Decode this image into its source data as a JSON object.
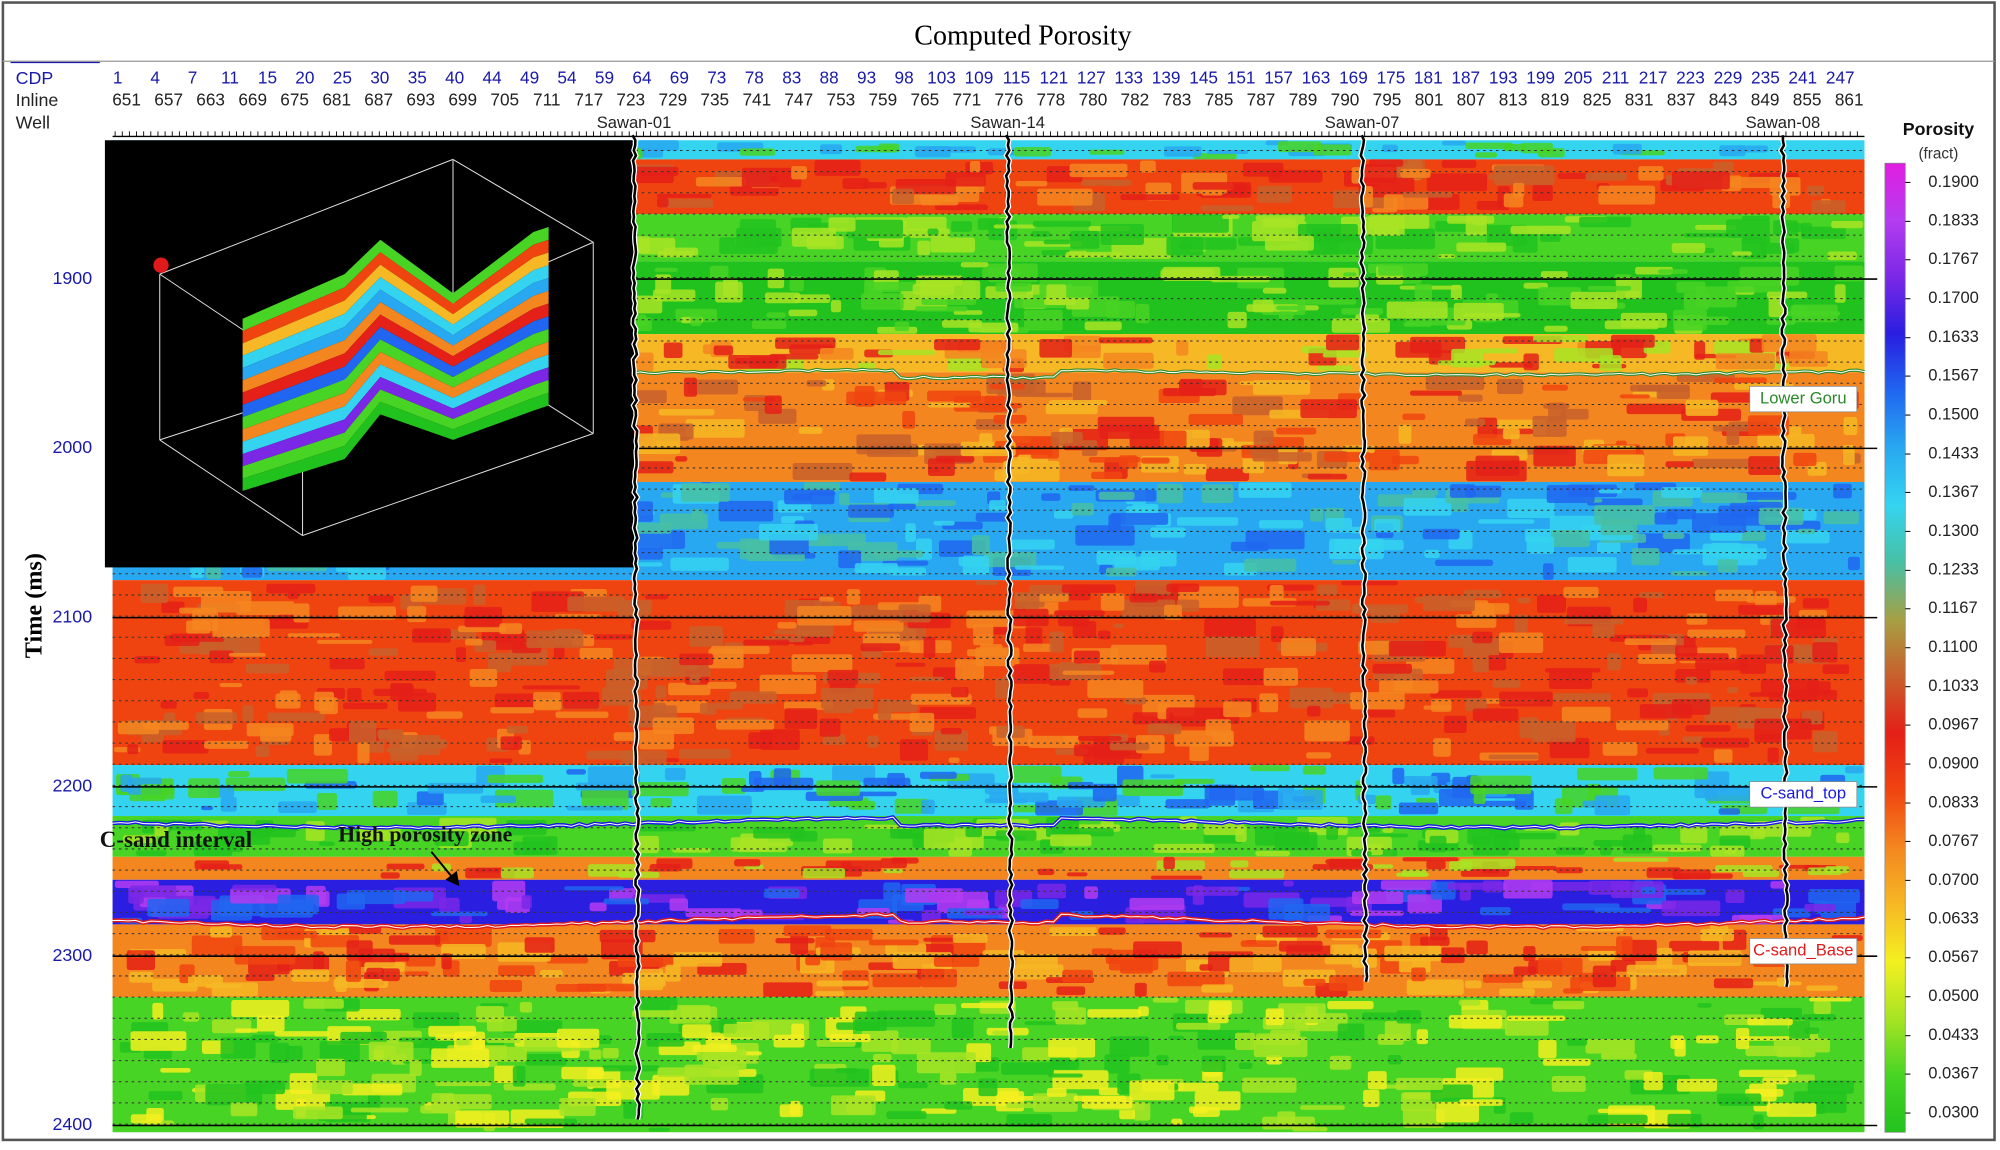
{
  "title": "Computed Porosity",
  "header_rows": {
    "labels": [
      "CDP",
      "Inline",
      "Well"
    ],
    "cdp": [
      "1",
      "4",
      "7",
      "11",
      "15",
      "20",
      "25",
      "30",
      "35",
      "40",
      "44",
      "49",
      "54",
      "59",
      "64",
      "69",
      "73",
      "78",
      "83",
      "88",
      "93",
      "98",
      "103",
      "109",
      "115",
      "121",
      "127",
      "133",
      "139",
      "145",
      "151",
      "157",
      "163",
      "169",
      "175",
      "181",
      "187",
      "193",
      "199",
      "205",
      "211",
      "217",
      "223",
      "229",
      "235",
      "241",
      "247"
    ],
    "inline": [
      "651",
      "657",
      "663",
      "669",
      "675",
      "681",
      "687",
      "693",
      "699",
      "705",
      "711",
      "717",
      "723",
      "729",
      "735",
      "741",
      "747",
      "753",
      "759",
      "765",
      "771",
      "776",
      "778",
      "780",
      "782",
      "783",
      "785",
      "787",
      "789",
      "790",
      "795",
      "801",
      "807",
      "813",
      "819",
      "825",
      "831",
      "837",
      "843",
      "849",
      "855",
      "861"
    ],
    "wells": [
      "Sawan-01",
      "Sawan-14",
      "Sawan-07",
      "Sawan-08"
    ]
  },
  "chart_data": {
    "type": "seismic-section",
    "y_label": "Time (ms)",
    "ylim": [
      1818,
      2404
    ],
    "yticks": [
      1900,
      2000,
      2100,
      2200,
      2300,
      2400
    ],
    "horizons": [
      "Lower Goru",
      "C-sand_top",
      "C-sand_Base"
    ],
    "annotations": [
      "C-sand interval",
      "High porosity zone"
    ],
    "colorbar": {
      "title": "Porosity",
      "unit": "(fract)",
      "lim": [
        0.0267,
        0.1933
      ],
      "colors": [
        "#e01ee0",
        "#b43cf0",
        "#7a28e6",
        "#2a1ee0",
        "#2066f0",
        "#28a8f0",
        "#34d4f0",
        "#48c0a4",
        "#a6a044",
        "#c8602c",
        "#e42018",
        "#f04410",
        "#f48620",
        "#f6b824",
        "#f4f020",
        "#a8e424",
        "#48d424",
        "#22c21e"
      ],
      "ticks": [
        {
          "value": 0.19,
          "label": "0.1900"
        },
        {
          "value": 0.1833,
          "label": "0.1833"
        },
        {
          "value": 0.1767,
          "label": "0.1767"
        },
        {
          "value": 0.17,
          "label": "0.1700"
        },
        {
          "value": 0.1633,
          "label": "0.1633"
        },
        {
          "value": 0.1567,
          "label": "0.1567"
        },
        {
          "value": 0.15,
          "label": "0.1500"
        },
        {
          "value": 0.1433,
          "label": "0.1433"
        },
        {
          "value": 0.1367,
          "label": "0.1367"
        },
        {
          "value": 0.13,
          "label": "0.1300"
        },
        {
          "value": 0.1233,
          "label": "0.1233"
        },
        {
          "value": 0.1167,
          "label": "0.1167"
        },
        {
          "value": 0.11,
          "label": "0.1100"
        },
        {
          "value": 0.1033,
          "label": "0.1033"
        },
        {
          "value": 0.0967,
          "label": "0.0967"
        },
        {
          "value": 0.09,
          "label": "0.0900"
        },
        {
          "value": 0.0833,
          "label": "0.0833"
        },
        {
          "value": 0.0767,
          "label": "0.0767"
        },
        {
          "value": 0.07,
          "label": "0.0700"
        },
        {
          "value": 0.0633,
          "label": "0.0633"
        },
        {
          "value": 0.0567,
          "label": "0.0567"
        },
        {
          "value": 0.05,
          "label": "0.0500"
        },
        {
          "value": 0.0433,
          "label": "0.0433"
        },
        {
          "value": 0.0367,
          "label": "0.0367"
        },
        {
          "value": 0.03,
          "label": "0.0300"
        }
      ]
    }
  }
}
